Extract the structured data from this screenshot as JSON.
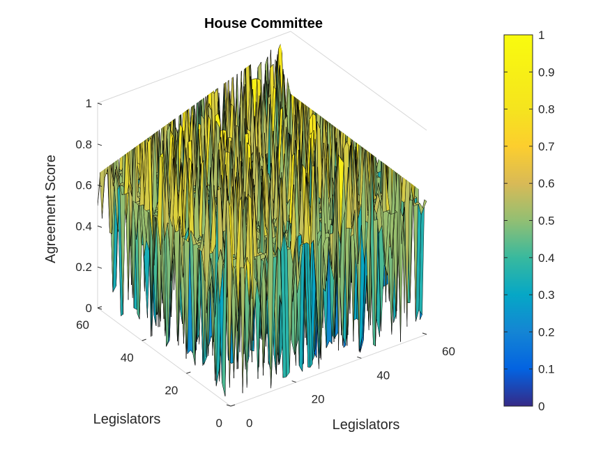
{
  "chart_data": {
    "type": "surface3d",
    "title": "House Committee",
    "xlabel": "Legislators",
    "ylabel": "Legislators",
    "zlabel": "Agreement Score",
    "xlim": [
      0,
      60
    ],
    "ylim": [
      0,
      60
    ],
    "zlim": [
      0,
      1
    ],
    "x_ticks": [
      "0",
      "20",
      "40",
      "60"
    ],
    "y_ticks": [
      "0",
      "20",
      "40",
      "60"
    ],
    "z_ticks": [
      "0",
      "0.2",
      "0.4",
      "0.6",
      "0.8",
      "1"
    ],
    "colorbar": {
      "colormap": "parula",
      "range": [
        0,
        1
      ],
      "ticks": [
        "0",
        "0.1",
        "0.2",
        "0.3",
        "0.4",
        "0.5",
        "0.6",
        "0.7",
        "0.8",
        "0.9",
        "1"
      ]
    },
    "grid": true,
    "matrix_size": 60,
    "dominant_value": 0.65
  }
}
